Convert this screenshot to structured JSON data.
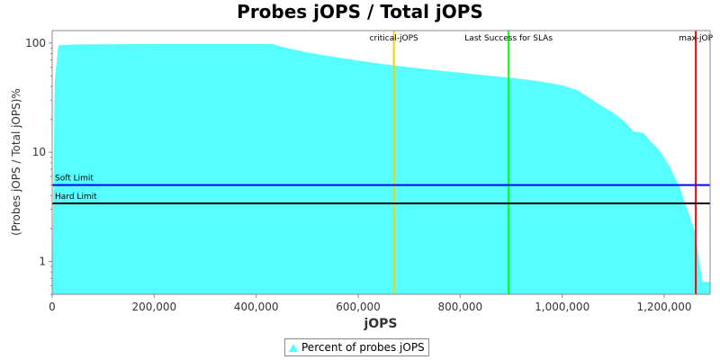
{
  "chart_data": {
    "type": "area",
    "title": "Probes jOPS / Total jOPS",
    "xlabel": "jOPS",
    "ylabel": "(Probes jOPS / Total jOPS)%",
    "xlim": [
      0,
      1290000
    ],
    "ylim": [
      0.5,
      130
    ],
    "yscale": "log",
    "x_ticks": [
      0,
      200000,
      400000,
      600000,
      800000,
      1000000,
      1200000
    ],
    "x_tick_labels": [
      "0",
      "200,000",
      "400,000",
      "600,000",
      "800,000",
      "1,000,000",
      "1,200,000"
    ],
    "y_ticks": [
      1,
      10,
      100
    ],
    "y_tick_labels": [
      "1",
      "10",
      "100"
    ],
    "grid": false,
    "legend_position": "bottom",
    "series": [
      {
        "name": "Percent of probes jOPS",
        "color": "#55ffff",
        "x": [
          0,
          5000,
          12000,
          20000,
          50000,
          100000,
          200000,
          300000,
          430000,
          460000,
          500000,
          550000,
          600000,
          650000,
          700000,
          750000,
          800000,
          850000,
          900000,
          950000,
          1000000,
          1030000,
          1060000,
          1080000,
          1100000,
          1120000,
          1140000,
          1160000,
          1170000,
          1190000,
          1210000,
          1230000,
          1245000,
          1260000,
          1275000,
          1290000
        ],
        "y": [
          0.5,
          45,
          95,
          96,
          97,
          97.5,
          98,
          98,
          98,
          90,
          82,
          75,
          69,
          64,
          60,
          56.5,
          53.5,
          50.5,
          48,
          45,
          41,
          37,
          30,
          26,
          23,
          19.5,
          15.5,
          15,
          13,
          10.5,
          7.5,
          4.8,
          3,
          1.9,
          0.65,
          0.65
        ]
      }
    ],
    "reference_lines": [
      {
        "orientation": "vertical",
        "label": "critical-jOPS",
        "value": 670000,
        "color": "#ffcc00"
      },
      {
        "orientation": "vertical",
        "label": "Last Success for SLAs",
        "value": 895000,
        "color": "#00ff00"
      },
      {
        "orientation": "vertical",
        "label": "max-jOP",
        "value": 1262000,
        "color": "#ff0000"
      },
      {
        "orientation": "horizontal",
        "label": "Soft Limit",
        "value": 5,
        "color": "#0000ff"
      },
      {
        "orientation": "horizontal",
        "label": "Hard Limit",
        "value": 3.4,
        "color": "#000000"
      }
    ]
  }
}
